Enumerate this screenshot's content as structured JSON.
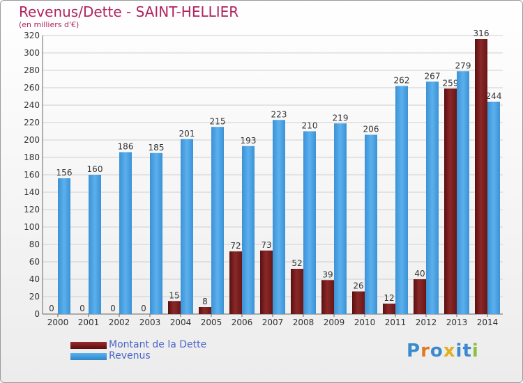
{
  "chart_data": {
    "type": "bar",
    "title": "Revenus/Dette - SAINT-HELLIER",
    "subtitle": "(en milliers d'€)",
    "categories": [
      "2000",
      "2001",
      "2002",
      "2003",
      "2004",
      "2005",
      "2006",
      "2007",
      "2008",
      "2009",
      "2010",
      "2011",
      "2012",
      "2013",
      "2014"
    ],
    "series": [
      {
        "name": "Montant de la Dette",
        "color": "#7a1e1e",
        "values": [
          0,
          0,
          0,
          0,
          15,
          8,
          72,
          73,
          52,
          39,
          26,
          12,
          40,
          259,
          316
        ]
      },
      {
        "name": "Revenus",
        "color": "#4aa0e0",
        "values": [
          156,
          160,
          186,
          185,
          201,
          215,
          193,
          223,
          210,
          219,
          206,
          262,
          267,
          279,
          244
        ]
      }
    ],
    "ylim": [
      0,
      320
    ],
    "yticks": [
      0,
      20,
      40,
      60,
      80,
      100,
      120,
      140,
      160,
      180,
      200,
      220,
      240,
      260,
      280,
      300,
      320
    ],
    "grid": true,
    "legend": "bottom-left"
  },
  "legend": {
    "debt_label": "Montant de la Dette",
    "revenue_label": "Revenus"
  },
  "brand": {
    "letters": [
      "P",
      "r",
      "o",
      "x",
      "i",
      "t",
      "i"
    ],
    "colors": [
      "#3a8ad0",
      "#e07a20",
      "#3a8ad0",
      "#e0b020",
      "#3a8ad0",
      "#3a8ad0",
      "#8cc040"
    ]
  }
}
